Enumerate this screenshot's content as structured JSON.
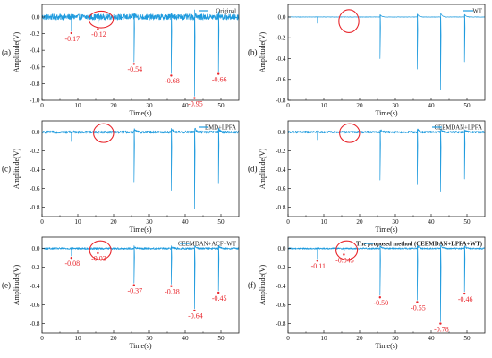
{
  "colors": {
    "signal": "#1f9bde",
    "annotation": "#e8262c",
    "axis": "#222222"
  },
  "chart_data": [
    {
      "type": "line",
      "panel": "(a)",
      "legend": "Original",
      "xlabel": "Time(s)",
      "ylabel": "Amplitude(V)",
      "xlim": [
        0,
        55
      ],
      "ylim": [
        -1.0,
        0.15
      ],
      "xticks": [
        0,
        10,
        20,
        30,
        40,
        50
      ],
      "yticks": [
        0.0,
        -0.2,
        -0.4,
        -0.6,
        -0.8,
        -1.0
      ],
      "noise_amplitude": 0.035,
      "spikes": [
        {
          "t": 8.2,
          "depth": -0.17
        },
        {
          "t": 15.6,
          "depth": -0.12
        },
        {
          "t": 25.7,
          "depth": -0.54
        },
        {
          "t": 36.1,
          "depth": -0.68
        },
        {
          "t": 42.6,
          "depth": -0.95
        },
        {
          "t": 49.3,
          "depth": -0.66
        }
      ],
      "annotations": [
        {
          "t": 8.2,
          "y": -0.17,
          "label": "-0.17"
        },
        {
          "t": 15.6,
          "y": -0.12,
          "label": "-0.12"
        },
        {
          "t": 25.7,
          "y": -0.54,
          "label": "-0.54"
        },
        {
          "t": 36.1,
          "y": -0.68,
          "label": "-0.68"
        },
        {
          "t": 42.6,
          "y": -0.95,
          "label": "-0.95"
        },
        {
          "t": 49.3,
          "y": -0.66,
          "label": "-0.66"
        }
      ],
      "ellipse": {
        "t": 16.5,
        "y": -0.03,
        "rt": 3.4,
        "ry": 0.1
      }
    },
    {
      "type": "line",
      "panel": "(b)",
      "legend": "WT",
      "xlabel": "Time(s)",
      "ylabel": "Amplitude(V)",
      "xlim": [
        0,
        55
      ],
      "ylim": [
        -0.8,
        0.12
      ],
      "xticks": [
        0,
        10,
        20,
        30,
        40,
        50
      ],
      "yticks": [
        0.0,
        -0.2,
        -0.4,
        -0.6,
        -0.8
      ],
      "noise_amplitude": 0.002,
      "spikes": [
        {
          "t": 8.2,
          "depth": -0.06
        },
        {
          "t": 15.6,
          "depth": -0.01
        },
        {
          "t": 25.7,
          "depth": -0.4
        },
        {
          "t": 36.1,
          "depth": -0.5
        },
        {
          "t": 42.6,
          "depth": -0.7
        },
        {
          "t": 49.3,
          "depth": -0.43
        }
      ],
      "annotations": [],
      "ellipse": {
        "t": 17.0,
        "y": -0.04,
        "rt": 2.8,
        "ry": 0.11
      }
    },
    {
      "type": "line",
      "panel": "(c)",
      "legend": "EMD+LPFA",
      "xlabel": "Time(s)",
      "ylabel": "Amplitude(V)",
      "xlim": [
        0,
        55
      ],
      "ylim": [
        -0.9,
        0.12
      ],
      "xticks": [
        0,
        10,
        20,
        30,
        40,
        50
      ],
      "yticks": [
        0.0,
        -0.2,
        -0.4,
        -0.6,
        -0.8
      ],
      "noise_amplitude": 0.014,
      "spikes": [
        {
          "t": 8.2,
          "depth": -0.1
        },
        {
          "t": 15.6,
          "depth": -0.04
        },
        {
          "t": 25.7,
          "depth": -0.53
        },
        {
          "t": 36.1,
          "depth": -0.62
        },
        {
          "t": 42.6,
          "depth": -0.82
        },
        {
          "t": 49.3,
          "depth": -0.55
        }
      ],
      "annotations": [],
      "ellipse": {
        "t": 17.2,
        "y": -0.01,
        "rt": 2.8,
        "ry": 0.1
      }
    },
    {
      "type": "line",
      "panel": "(d)",
      "legend": "CEEMDAN+LPFA",
      "xlabel": "Time(s)",
      "ylabel": "Amplitude(V)",
      "xlim": [
        0,
        55
      ],
      "ylim": [
        -0.9,
        0.12
      ],
      "xticks": [
        0,
        10,
        20,
        30,
        40,
        50
      ],
      "yticks": [
        0.0,
        -0.2,
        -0.4,
        -0.6,
        -0.8
      ],
      "noise_amplitude": 0.012,
      "spikes": [
        {
          "t": 8.2,
          "depth": -0.08
        },
        {
          "t": 15.6,
          "depth": -0.03
        },
        {
          "t": 25.7,
          "depth": -0.51
        },
        {
          "t": 36.1,
          "depth": -0.56
        },
        {
          "t": 42.6,
          "depth": -0.63
        },
        {
          "t": 49.3,
          "depth": -0.5
        }
      ],
      "annotations": [],
      "ellipse": {
        "t": 17.2,
        "y": -0.01,
        "rt": 2.8,
        "ry": 0.1
      }
    },
    {
      "type": "line",
      "panel": "(e)",
      "legend": "CEEMDAN+ACF+WT",
      "xlabel": "Time(s)",
      "ylabel": "Amplitude(V)",
      "xlim": [
        0,
        55
      ],
      "ylim": [
        -0.9,
        0.12
      ],
      "xticks": [
        0,
        10,
        20,
        30,
        40,
        50
      ],
      "yticks": [
        0.0,
        -0.2,
        -0.4,
        -0.6,
        -0.8
      ],
      "noise_amplitude": 0.01,
      "spikes": [
        {
          "t": 8.2,
          "depth": -0.08
        },
        {
          "t": 15.6,
          "depth": -0.03
        },
        {
          "t": 25.7,
          "depth": -0.37
        },
        {
          "t": 36.1,
          "depth": -0.38
        },
        {
          "t": 42.6,
          "depth": -0.64
        },
        {
          "t": 49.3,
          "depth": -0.45
        }
      ],
      "annotations": [
        {
          "t": 8.2,
          "y": -0.08,
          "label": "-0.08"
        },
        {
          "t": 15.6,
          "y": -0.03,
          "label": "-0.03"
        },
        {
          "t": 25.7,
          "y": -0.37,
          "label": "-0.37"
        },
        {
          "t": 36.1,
          "y": -0.38,
          "label": "-0.38"
        },
        {
          "t": 42.6,
          "y": -0.64,
          "label": "-0.64"
        },
        {
          "t": 49.3,
          "y": -0.45,
          "label": "-0.45"
        }
      ],
      "ellipse": {
        "t": 16.3,
        "y": -0.02,
        "rt": 3.0,
        "ry": 0.1
      }
    },
    {
      "type": "line",
      "panel": "(f)",
      "legend": "The proposed method (CEEMDAN+LPFA+WT)",
      "xlabel": "Time(s)",
      "ylabel": "Amplitude(V)",
      "xlim": [
        0,
        55
      ],
      "ylim": [
        -0.9,
        0.12
      ],
      "xticks": [
        0,
        10,
        20,
        30,
        40,
        50
      ],
      "yticks": [
        0.0,
        -0.2,
        -0.4,
        -0.6,
        -0.8
      ],
      "noise_amplitude": 0.008,
      "spikes": [
        {
          "t": 8.2,
          "depth": -0.11
        },
        {
          "t": 15.6,
          "depth": -0.045
        },
        {
          "t": 25.7,
          "depth": -0.5
        },
        {
          "t": 36.1,
          "depth": -0.55
        },
        {
          "t": 42.6,
          "depth": -0.78
        },
        {
          "t": 49.3,
          "depth": -0.46
        }
      ],
      "annotations": [
        {
          "t": 8.2,
          "y": -0.11,
          "label": "-0.11"
        },
        {
          "t": 15.6,
          "y": -0.045,
          "label": "-0.045"
        },
        {
          "t": 25.7,
          "y": -0.5,
          "label": "-0.50"
        },
        {
          "t": 36.1,
          "y": -0.55,
          "label": "-0.55"
        },
        {
          "t": 42.6,
          "y": -0.78,
          "label": "-0.78"
        },
        {
          "t": 49.3,
          "y": -0.46,
          "label": "-0.46"
        }
      ],
      "ellipse": {
        "t": 16.4,
        "y": -0.02,
        "rt": 3.0,
        "ry": 0.1
      }
    }
  ]
}
